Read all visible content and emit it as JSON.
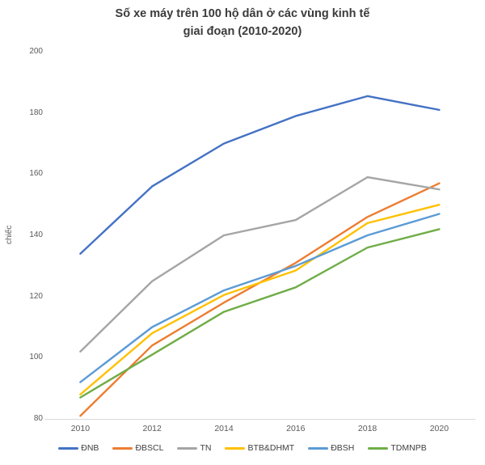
{
  "title": {
    "line1": "Số xe máy trên 100 hộ dân ở các vùng kinh tế",
    "line2": "giai đoạn (2010-2020)"
  },
  "chart_data": {
    "type": "line",
    "title": "Số xe máy trên 100 hộ dân ở các vùng kinh tế giai đoạn (2010-2020)",
    "x": [
      2010,
      2012,
      2014,
      2016,
      2018,
      2020
    ],
    "series": [
      {
        "name": "ĐNB",
        "color": "#4472C4",
        "values": [
          134,
          156,
          170,
          179,
          185.5,
          181
        ]
      },
      {
        "name": "ĐBSCL",
        "color": "#ED7D31",
        "values": [
          81,
          104,
          118,
          131,
          146,
          157
        ]
      },
      {
        "name": "TN",
        "color": "#A5A5A5",
        "values": [
          102,
          125,
          140,
          145,
          159,
          155
        ]
      },
      {
        "name": "BTB&DHMT",
        "color": "#FFC000",
        "values": [
          88,
          108,
          120.5,
          128.5,
          144,
          150
        ]
      },
      {
        "name": "ĐBSH",
        "color": "#5B9BD5",
        "values": [
          92,
          110,
          122,
          130,
          140,
          147
        ]
      },
      {
        "name": "TDMNPB",
        "color": "#70AD47",
        "values": [
          87,
          101,
          115,
          123,
          136,
          142
        ]
      }
    ],
    "xlabel": "",
    "ylabel": "chiếc",
    "ylim": [
      80,
      200
    ],
    "y_ticks": [
      80,
      100,
      120,
      140,
      160,
      180,
      200
    ],
    "grid": false,
    "legend_position": "bottom",
    "axis_line_color": "#d9d9d9",
    "tick_label_color": "#595959"
  }
}
